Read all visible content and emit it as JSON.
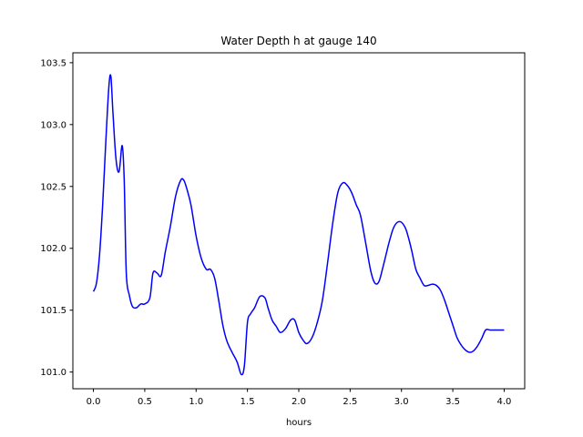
{
  "chart_data": {
    "type": "line",
    "title": "Water Depth h at gauge 140",
    "xlabel": "hours",
    "ylabel": "",
    "xlim": [
      -0.2,
      4.2
    ],
    "ylim": [
      100.865,
      103.58
    ],
    "grid": false,
    "xticks": [
      0.0,
      0.5,
      1.0,
      1.5,
      2.0,
      2.5,
      3.0,
      3.5,
      4.0
    ],
    "xtick_labels": [
      "0.0",
      "0.5",
      "1.0",
      "1.5",
      "2.0",
      "2.5",
      "3.0",
      "3.5",
      "4.0"
    ],
    "yticks": [
      101.0,
      101.5,
      102.0,
      102.5,
      103.0,
      103.5
    ],
    "ytick_labels": [
      "101.0",
      "101.5",
      "102.0",
      "102.5",
      "103.0",
      "103.5"
    ],
    "series": [
      {
        "color": "#0000ff",
        "x": [
          0.0,
          0.03,
          0.06,
          0.09,
          0.12,
          0.15,
          0.17,
          0.19,
          0.22,
          0.25,
          0.28,
          0.3,
          0.32,
          0.35,
          0.38,
          0.42,
          0.46,
          0.5,
          0.55,
          0.58,
          0.62,
          0.66,
          0.7,
          0.75,
          0.8,
          0.85,
          0.88,
          0.91,
          0.95,
          1.0,
          1.05,
          1.1,
          1.14,
          1.18,
          1.22,
          1.26,
          1.3,
          1.35,
          1.4,
          1.44,
          1.47,
          1.5,
          1.53,
          1.57,
          1.62,
          1.67,
          1.7,
          1.74,
          1.78,
          1.82,
          1.87,
          1.92,
          1.96,
          2.0,
          2.04,
          2.08,
          2.13,
          2.18,
          2.23,
          2.28,
          2.33,
          2.38,
          2.43,
          2.48,
          2.52,
          2.56,
          2.6,
          2.65,
          2.7,
          2.74,
          2.78,
          2.82,
          2.85,
          2.88,
          2.92,
          2.96,
          3.0,
          3.04,
          3.07,
          3.1,
          3.14,
          3.18,
          3.22,
          3.26,
          3.3,
          3.34,
          3.38,
          3.42,
          3.46,
          3.5,
          3.54,
          3.58,
          3.62,
          3.66,
          3.7,
          3.74,
          3.78,
          3.82,
          3.86,
          3.9,
          3.94,
          3.98,
          4.0
        ],
        "y": [
          101.65,
          101.72,
          101.95,
          102.35,
          102.85,
          103.3,
          103.39,
          103.1,
          102.72,
          102.62,
          102.83,
          102.55,
          101.8,
          101.62,
          101.53,
          101.52,
          101.55,
          101.55,
          101.6,
          101.8,
          101.8,
          101.78,
          101.97,
          102.18,
          102.42,
          102.55,
          102.55,
          102.48,
          102.35,
          102.1,
          101.92,
          101.83,
          101.83,
          101.76,
          101.58,
          101.38,
          101.25,
          101.16,
          101.08,
          100.98,
          101.05,
          101.4,
          101.47,
          101.52,
          101.61,
          101.6,
          101.52,
          101.42,
          101.37,
          101.32,
          101.35,
          101.42,
          101.42,
          101.32,
          101.26,
          101.23,
          101.28,
          101.4,
          101.58,
          101.88,
          102.2,
          102.45,
          102.53,
          102.5,
          102.44,
          102.35,
          102.27,
          102.05,
          101.82,
          101.72,
          101.73,
          101.85,
          101.95,
          102.05,
          102.16,
          102.21,
          102.21,
          102.16,
          102.08,
          101.98,
          101.83,
          101.76,
          101.7,
          101.7,
          101.71,
          101.7,
          101.66,
          101.58,
          101.48,
          101.38,
          101.28,
          101.22,
          101.18,
          101.16,
          101.17,
          101.21,
          101.27,
          101.34,
          101.34,
          101.34,
          101.34,
          101.34,
          101.34
        ]
      }
    ]
  }
}
